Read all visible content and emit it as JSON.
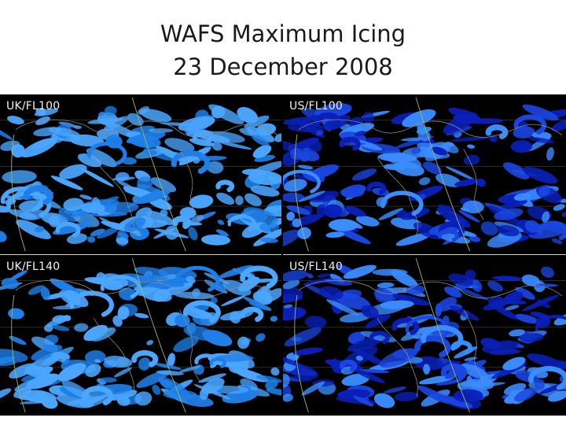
{
  "slide": {
    "title_line1": "WAFS Maximum Icing",
    "title_line2": "23 December 2008"
  },
  "panels": [
    {
      "label": "UK/FL100",
      "palette": "uk",
      "seed": 11
    },
    {
      "label": "US/FL100",
      "palette": "us",
      "seed": 23
    },
    {
      "label": "UK/FL140",
      "palette": "uk",
      "seed": 37
    },
    {
      "label": "US/FL140",
      "palette": "us",
      "seed": 51
    }
  ],
  "colors": {
    "map_background": "#000000",
    "uk_icing_light": "#4aa6ff",
    "uk_icing_mid": "#1f7fe8",
    "us_icing_dark": "#0a1fb8",
    "us_icing_mid": "#1a46e0",
    "us_icing_light": "#3a8cff",
    "coastline": "#8a8a8a",
    "meridian_curve": "#9fb86a"
  }
}
